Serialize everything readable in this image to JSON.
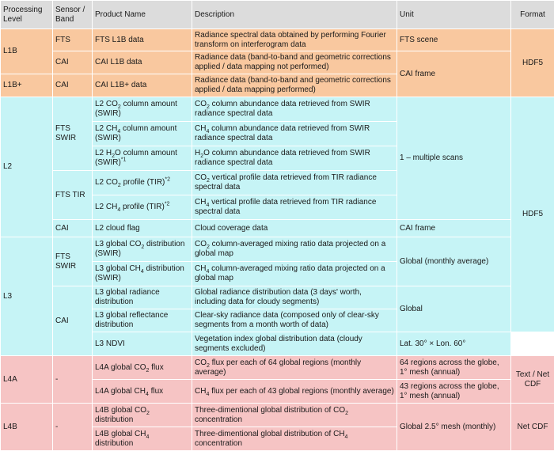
{
  "headers": {
    "level": "Processing Level",
    "sensor": "Sensor / Band",
    "product": "Product Name",
    "description": "Description",
    "unit": "Unit",
    "format": "Format"
  },
  "l1b": {
    "level": "L1B",
    "fts": "FTS",
    "cai": "CAI",
    "fts_product": "FTS L1B data",
    "fts_desc": "Radiance spectral data obtained by performing Fourier transform on interferogram data",
    "fts_unit": "FTS scene",
    "cai_product": "CAI L1B data",
    "cai_desc": "Radiance data (band-to-band and geometric corrections applied / data mapping not performed)"
  },
  "l1bplus": {
    "level": "L1B+",
    "sensor": "CAI",
    "product": "CAI L1B+ data",
    "desc": "Radiance data (band-to-band and geometric corrections applied / data mapping performed)"
  },
  "l1_shared": {
    "cai_unit": "CAI frame",
    "format": "HDF5"
  },
  "l2": {
    "level": "L2",
    "fts_swir": "FTS SWIR",
    "fts_tir": "FTS TIR",
    "cai": "CAI",
    "co2_product_a": "L2 CO",
    "co2_product_b": " column amount (SWIR)",
    "co2_desc_a": "CO",
    "co2_desc_b": " column abundance data retrieved from SWIR radiance spectral data",
    "ch4_product_a": "L2 CH",
    "ch4_product_b": " column amount (SWIR)",
    "ch4_desc_a": "CH",
    "ch4_desc_b": " column abundance data retrieved from SWIR radiance spectral data",
    "h2o_product_a": "L2 H",
    "h2o_product_b": "O column amount (SWIR)",
    "h2o_note": "*1",
    "h2o_desc_a": "H",
    "h2o_desc_b": "O column abundance data retrieved from SWIR radiance spectral data",
    "co2tir_product_a": "L2 CO",
    "co2tir_product_b": " profile (TIR)",
    "co2tir_note": "*2",
    "co2tir_desc_a": "CO",
    "co2tir_desc_b": " vertical profile data retrieved from TIR radiance spectral data",
    "ch4tir_product_a": "L2 CH",
    "ch4tir_product_b": " profile (TIR)",
    "ch4tir_note": "*2",
    "ch4tir_desc_a": "CH",
    "ch4tir_desc_b": " vertical profile data retrieved from TIR radiance spectral data",
    "scans_unit": "1 – multiple scans",
    "cloud_product": "L2 cloud flag",
    "cloud_desc": "Cloud coverage data",
    "cloud_unit": "CAI frame",
    "format": "HDF5"
  },
  "l3": {
    "level": "L3",
    "fts_swir": "FTS SWIR",
    "cai": "CAI",
    "co2_product_a": "L3 global CO",
    "co2_product_b": " distribution (SWIR)",
    "co2_desc_a": "CO",
    "co2_desc_b": " column-averaged mixing ratio data projected on a global map",
    "ch4_product_a": "L3 global CH",
    "ch4_product_b": " distribution (SWIR)",
    "ch4_desc_a": "CH",
    "ch4_desc_b": " column-averaged mixing ratio data projected on a global map",
    "swir_unit": "Global (monthly average)",
    "radiance_product": "L3 global radiance distribution",
    "radiance_desc": "Global radiance distribution data (3 days' worth, including data for cloudy segments)",
    "reflectance_product": "L3 global reflectance distribution",
    "reflectance_desc": "Clear-sky radiance data (composed only of clear-sky segments from a month worth of data)",
    "global_unit": "Global",
    "ndvi_product": "L3 NDVI",
    "ndvi_desc": "Vegetation index global distribution data (cloudy segments excluded)",
    "ndvi_unit": "Lat. 30° × Lon. 60°"
  },
  "l4a": {
    "level": "L4A",
    "sensor": "-",
    "co2_product_a": "L4A global CO",
    "co2_product_b": " flux",
    "co2_desc_a": "CO",
    "co2_desc_b": " flux per each of 64 global regions (monthly average)",
    "co2_unit": "64 regions across the globe, 1° mesh (annual)",
    "ch4_product_a": "L4A global CH",
    "ch4_product_b": " flux",
    "ch4_desc_a": "CH",
    "ch4_desc_b": " flux per each of 43 global regions (monthly average)",
    "ch4_unit": "43 regions across the globe, 1° mesh (annual)",
    "format": "Text / Net CDF"
  },
  "l4b": {
    "level": "L4B",
    "sensor": "-",
    "co2_product_a": "L4B global CO",
    "co2_product_b": " distribution",
    "co2_desc_a": "Three-dimentional global distribution of CO",
    "co2_desc_b": " concentration",
    "ch4_product_a": "L4B global CH",
    "ch4_product_b": " distribution",
    "ch4_desc_a": "Three-dimentional global distribution of CH",
    "ch4_desc_b": " concentration",
    "unit": "Global 2.5° mesh (monthly)",
    "format": "Net CDF"
  },
  "subscripts": {
    "two": "2",
    "four": "4"
  },
  "colors": {
    "header": "#dcdcdc",
    "l1": "#f9c89f",
    "l2_l3": "#c6f4f6",
    "l4": "#f6c4c4"
  }
}
